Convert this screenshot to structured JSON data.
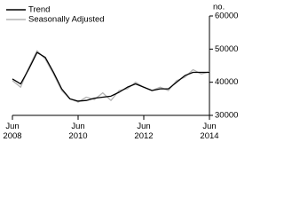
{
  "chart_data": {
    "type": "line",
    "y_unit": "no.",
    "x": [
      2008.5,
      2008.75,
      2009.0,
      2009.25,
      2009.5,
      2009.75,
      2010.0,
      2010.25,
      2010.5,
      2010.75,
      2011.0,
      2011.25,
      2011.5,
      2011.75,
      2012.0,
      2012.25,
      2012.5,
      2012.75,
      2013.0,
      2013.25,
      2013.5,
      2013.75,
      2014.0,
      2014.25,
      2014.5
    ],
    "series": [
      {
        "name": "Trend",
        "color": "#000000",
        "width": 1.3,
        "values": [
          41000,
          39500,
          44000,
          49000,
          47500,
          43000,
          38000,
          35000,
          34300,
          34500,
          35200,
          35500,
          35800,
          37000,
          38500,
          39500,
          38500,
          37500,
          38000,
          38000,
          40000,
          42000,
          43000,
          43000,
          43000
        ]
      },
      {
        "name": "Seasonally Adjusted",
        "color": "#b3b3b3",
        "width": 1.3,
        "values": [
          40500,
          38500,
          44500,
          49500,
          47000,
          42500,
          37500,
          35000,
          34000,
          35500,
          34800,
          36800,
          34500,
          37500,
          38000,
          40000,
          38500,
          37500,
          38500,
          37500,
          40500,
          41500,
          43800,
          42500,
          43200
        ]
      }
    ],
    "xlim": [
      2008.5,
      2014.5
    ],
    "xticks": [
      {
        "value": 2008.5,
        "label": "Jun 2008"
      },
      {
        "value": 2010.5,
        "label": "Jun 2010"
      },
      {
        "value": 2012.5,
        "label": "Jun 2012"
      },
      {
        "value": 2014.5,
        "label": "Jun 2014"
      }
    ],
    "ylim": [
      30000,
      60000
    ],
    "yticks": [
      30000,
      40000,
      50000,
      60000
    ],
    "legend": "top-left"
  }
}
